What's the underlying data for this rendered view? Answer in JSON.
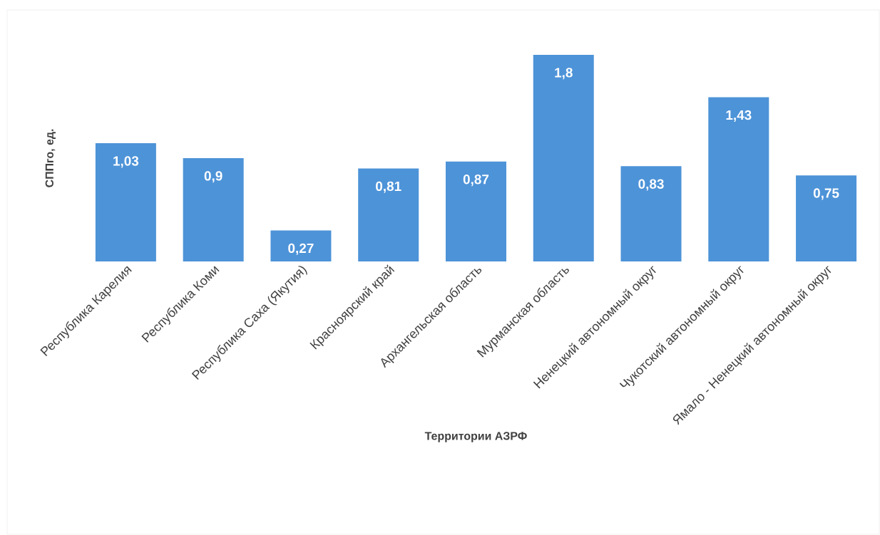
{
  "chart_data": {
    "type": "bar",
    "categories": [
      "Республика Карелия",
      "Республика Коми",
      "Республика Саха (Якутия)",
      "Красноярский край",
      "Архангельская область",
      "Мурманская область",
      "Ненецкий автономный округ",
      "Чукотский автономный округ",
      "Ямало - Ненецкий автономный округ"
    ],
    "values": [
      1.03,
      0.9,
      0.27,
      0.81,
      0.87,
      1.8,
      0.83,
      1.43,
      0.75
    ],
    "value_labels": [
      "1,03",
      "0,9",
      "0,27",
      "0,81",
      "0,87",
      "1,8",
      "0,83",
      "1,43",
      "0,75"
    ],
    "color": "#4d93d8",
    "xlabel": "Территории АЗРФ",
    "ylabel": "СППго, ед."
  }
}
